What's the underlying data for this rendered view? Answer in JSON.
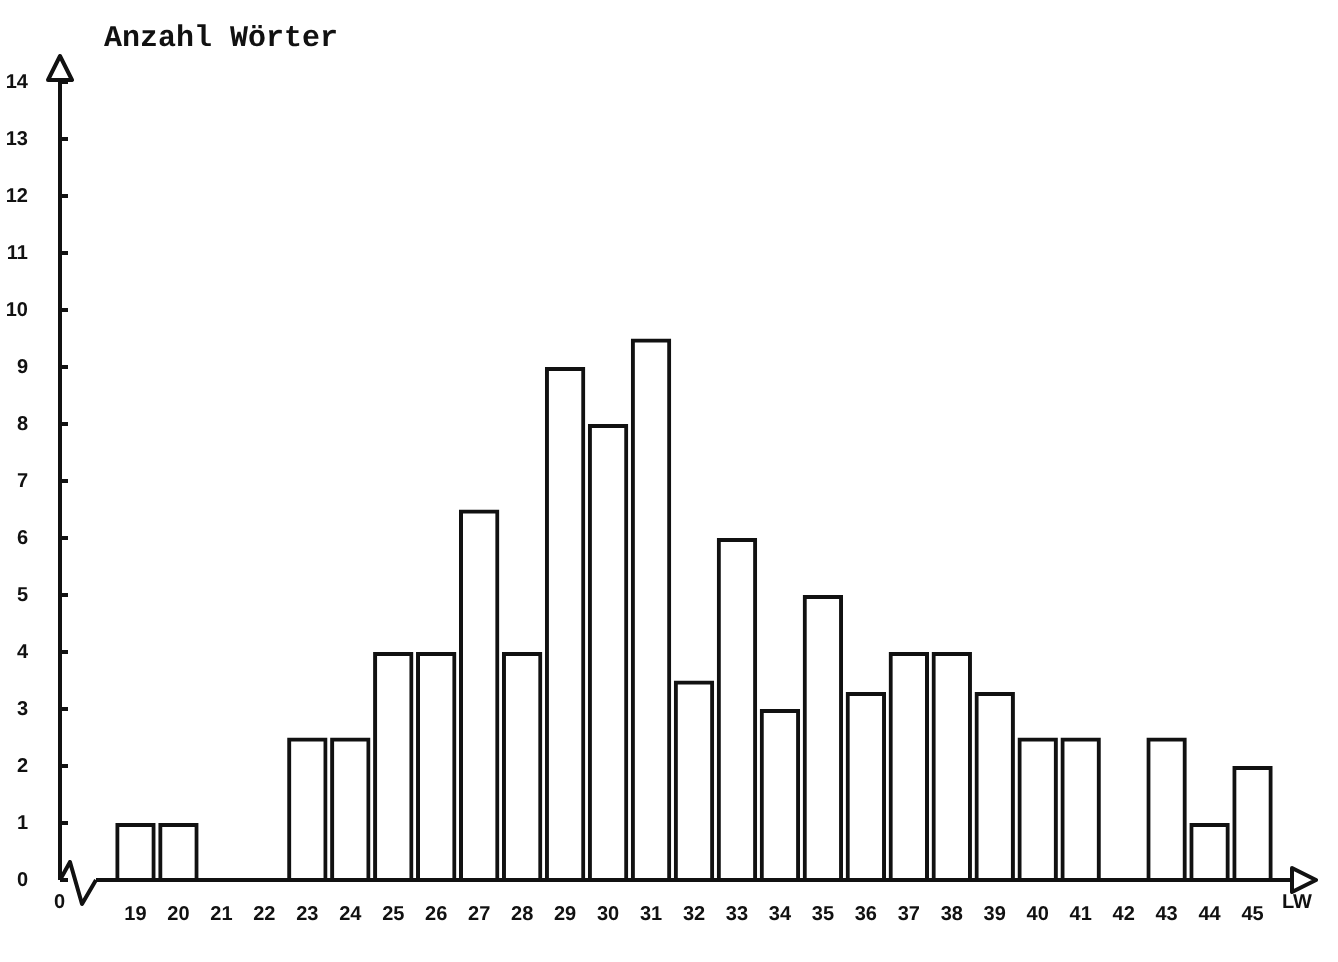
{
  "chart_data": {
    "type": "bar",
    "ylabel": "Anzahl Wörter",
    "xlabel": "LW",
    "annotations": [
      "0"
    ],
    "categories": [
      "19",
      "20",
      "21",
      "22",
      "23",
      "24",
      "25",
      "26",
      "27",
      "28",
      "29",
      "30",
      "31",
      "32",
      "33",
      "34",
      "35",
      "36",
      "37",
      "38",
      "39",
      "40",
      "41",
      "42",
      "43",
      "44",
      "45"
    ],
    "values": [
      1,
      1,
      0,
      0,
      2.5,
      2.5,
      4,
      4,
      6.5,
      4,
      9,
      8,
      9.5,
      3.5,
      6,
      3,
      5,
      3.3,
      4,
      4,
      3.3,
      2.5,
      2.5,
      0,
      2.5,
      1,
      2
    ],
    "color": "#111111",
    "ylim": [
      0,
      14
    ],
    "yticks": [
      0,
      1,
      2,
      3,
      4,
      5,
      6,
      7,
      8,
      9,
      10,
      11,
      12,
      13,
      14
    ],
    "grid": false,
    "legend": false
  }
}
